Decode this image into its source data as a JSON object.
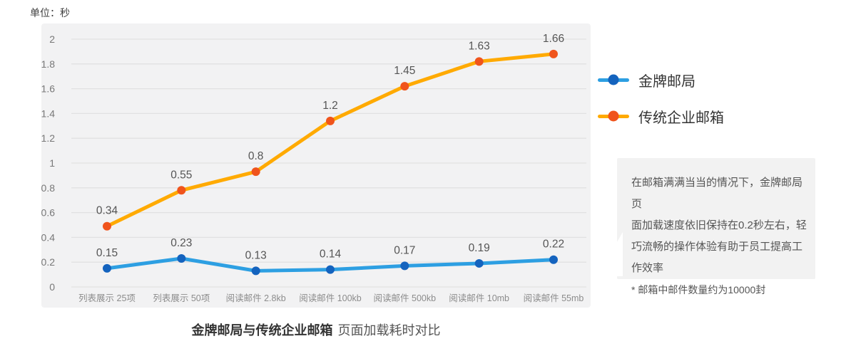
{
  "unit_label": "单位：秒",
  "colors": {
    "page_bg": "#ffffff",
    "panel_bg": "#f2f2f3",
    "grid_line": "#e1e1e2",
    "axis_tick_text": "#787878",
    "category_text": "#8c8c8c",
    "value_label_text": "#555555",
    "legend_text": "#333333",
    "note_bg": "#f2f2f2",
    "note_text": "#555555",
    "caption_bold": "#333333",
    "caption_regular": "#555555"
  },
  "chart_data": {
    "type": "line",
    "title": "金牌邮局与传统企业邮箱 页面加载耗时对比",
    "unit": "秒",
    "categories": [
      "列表展示 25项",
      "列表展示 50项",
      "阅读邮件 2.8kb",
      "阅读邮件 100kb",
      "阅读邮件 500kb",
      "阅读邮件 10mb",
      "阅读邮件 55mb"
    ],
    "series": [
      {
        "name": "金牌邮局",
        "values": [
          0.15,
          0.23,
          0.13,
          0.14,
          0.17,
          0.19,
          0.22
        ],
        "line_color": "#2d9fe2",
        "dot_color": "#1463be"
      },
      {
        "name": "传统企业邮箱",
        "values": [
          0.34,
          0.55,
          0.8,
          1.2,
          1.45,
          1.63,
          1.66
        ],
        "line_color": "#ffaa00",
        "dot_color": "#f0541c"
      }
    ],
    "ylim": [
      0,
      2
    ],
    "ytick_step": 0.2,
    "ytick_labels": [
      "0",
      "0.2",
      "0.4",
      "0.6",
      "0.8",
      "1",
      "1.2",
      "1.4",
      "1.6",
      "1.8",
      "2"
    ],
    "grid": "horizontal",
    "legend_position": "right",
    "stacked_rendering": true
  },
  "legend": {
    "items": [
      {
        "label": "金牌邮局"
      },
      {
        "label": "传统企业邮箱"
      }
    ]
  },
  "note_box": {
    "lines": [
      "在邮箱满满当当的情况下，金牌邮局页",
      "面加载速度依旧保持在0.2秒左右，轻",
      "巧流畅的操作体验有助于员工提高工",
      "作效率"
    ],
    "footnote": "* 邮箱中邮件数量约为10000封"
  },
  "caption": {
    "bold": "金牌邮局与传统企业邮箱",
    "regular": "页面加载耗时对比"
  }
}
